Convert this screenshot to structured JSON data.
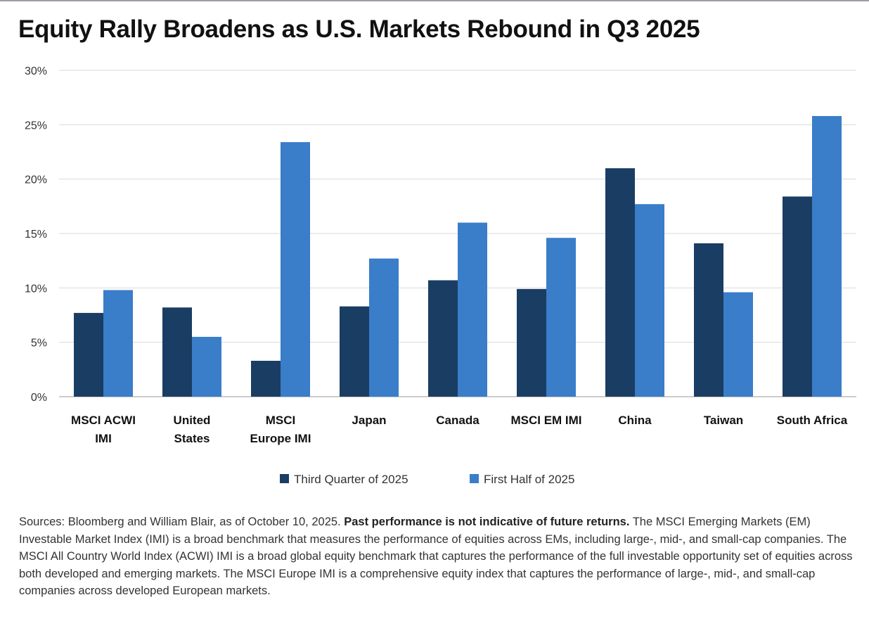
{
  "title": "Equity Rally Broadens as U.S. Markets Rebound in Q3 2025",
  "chart_data": {
    "type": "bar",
    "title": "Equity Rally Broadens as U.S. Markets Rebound in Q3 2025",
    "categories": [
      [
        "MSCI ACWI",
        "IMI"
      ],
      [
        "United",
        "States"
      ],
      [
        "MSCI",
        "Europe IMI"
      ],
      [
        "Japan"
      ],
      [
        "Canada"
      ],
      [
        "MSCI EM IMI"
      ],
      [
        "China"
      ],
      [
        "Taiwan"
      ],
      [
        "South Africa"
      ]
    ],
    "series": [
      {
        "name": "Third Quarter of 2025",
        "color": "#1a3d63",
        "values": [
          7.7,
          8.2,
          3.3,
          8.3,
          10.7,
          9.9,
          21.0,
          14.1,
          18.4
        ]
      },
      {
        "name": "First Half of 2025",
        "color": "#3a7dc9",
        "values": [
          9.8,
          5.5,
          23.4,
          12.7,
          16.0,
          14.6,
          17.7,
          9.6,
          25.8
        ]
      }
    ],
    "yticks": [
      "0%",
      "5%",
      "10%",
      "15%",
      "20%",
      "25%",
      "30%"
    ],
    "ylim": [
      0,
      30
    ],
    "xlabel": "",
    "ylabel": "",
    "grid": true,
    "legend_position": "bottom-center"
  },
  "footnote": {
    "lead": "Sources: Bloomberg and William Blair, as of October 10, 2025.",
    "bold": "Past performance is not indicative of future returns.",
    "rest": "The MSCI Emerging Markets (EM) Investable Market Index (IMI) is a broad benchmark that measures the performance of equities across EMs, including large-, mid-, and small-cap companies. The MSCI All Country World Index (ACWI) IMI is a broad global equity benchmark that captures the performance of the full investable opportunity set of equities across both developed and emerging markets. The MSCI Europe IMI is a comprehensive equity index that captures the performance of large-, mid-, and small-cap companies across developed European markets."
  }
}
